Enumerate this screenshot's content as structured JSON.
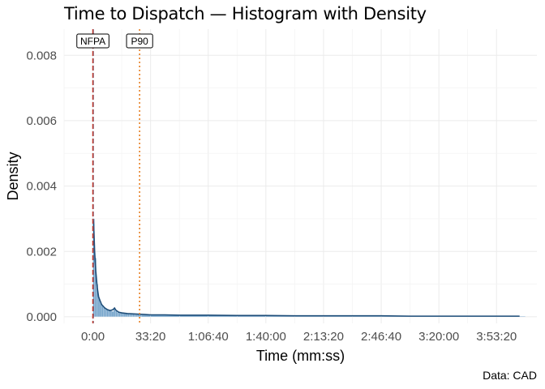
{
  "title": "Time to Dispatch — Histogram with Density",
  "caption": "Data: CAD",
  "chart_data": {
    "type": "histogram",
    "xlabel": "Time (mm:ss)",
    "ylabel": "Density",
    "xlim": [
      -1000,
      15400
    ],
    "ylim": [
      -0.0002,
      0.0088
    ],
    "x_ticks": [
      0,
      2000,
      4000,
      6000,
      8000,
      10000,
      12000,
      14000
    ],
    "x_tick_labels": [
      "0:00",
      "33:20",
      "1:06:40",
      "1:40:00",
      "2:13:20",
      "2:46:40",
      "3:20:00",
      "3:53:20"
    ],
    "y_ticks": [
      0,
      0.002,
      0.004,
      0.006,
      0.008
    ],
    "y_tick_labels": [
      "0.000",
      "0.002",
      "0.004",
      "0.006",
      "0.008"
    ],
    "grid": true,
    "bar_color": "#6fa0c8",
    "density_color": "#1f4e79",
    "bars": {
      "x": [
        30,
        90,
        150,
        210,
        270,
        330,
        390,
        450,
        510,
        570,
        630,
        690,
        750,
        810,
        870,
        930,
        990,
        1050,
        1110,
        1170,
        1230,
        1290,
        1350,
        1410,
        1470,
        1530,
        1590,
        1650,
        1710,
        1770,
        1830,
        1890,
        1950,
        2500,
        3500,
        4500,
        5500,
        6500,
        7500,
        8500,
        9500,
        10500,
        11500,
        12500,
        13500,
        14500
      ],
      "density": [
        0.003,
        0.0018,
        0.001,
        0.0006,
        0.00045,
        0.00035,
        0.0003,
        0.00025,
        0.00022,
        0.0002,
        0.00018,
        0.00017,
        0.00025,
        0.00018,
        0.00014,
        0.00012,
        0.00011,
        0.0001,
        0.0001,
        9e-05,
        9e-05,
        8e-05,
        8e-05,
        8e-05,
        7e-05,
        7e-05,
        7e-05,
        6e-05,
        6e-05,
        6e-05,
        6e-05,
        5e-05,
        5e-05,
        5e-05,
        5e-05,
        4e-05,
        4e-05,
        3e-05,
        3e-05,
        3e-05,
        3e-05,
        2e-05,
        2e-05,
        2e-05,
        2e-05,
        2e-05
      ]
    },
    "density_curve": {
      "x": [
        0,
        20,
        40,
        60,
        100,
        150,
        200,
        300,
        400,
        500,
        600,
        700,
        750,
        800,
        900,
        1000,
        1200,
        1400,
        1600,
        1800,
        2000,
        2500,
        3000,
        4000,
        5000,
        6000,
        7000,
        8000,
        9000,
        10000,
        11000,
        12000,
        13000,
        14000,
        14800
      ],
      "y": [
        0.003,
        0.0029,
        0.0025,
        0.002,
        0.0014,
        0.0009,
        0.0006,
        0.00038,
        0.00028,
        0.00022,
        0.00019,
        0.00022,
        0.00027,
        0.0002,
        0.00014,
        0.00012,
        0.0001,
        9e-05,
        8e-05,
        7e-05,
        6e-05,
        6e-05,
        5e-05,
        5e-05,
        4e-05,
        4e-05,
        3e-05,
        3e-05,
        3e-05,
        3e-05,
        2e-05,
        2e-05,
        2e-05,
        2e-05,
        2e-05
      ]
    },
    "reference_lines": [
      {
        "label": "NFPA",
        "x": 0,
        "color": "#c0392b",
        "style": "dashed"
      },
      {
        "label": "P90",
        "x": 1620,
        "color": "#e67e22",
        "style": "dotted"
      }
    ],
    "extra_line": {
      "x": 15,
      "color": "#3a6fb0",
      "style": "dashed"
    }
  }
}
